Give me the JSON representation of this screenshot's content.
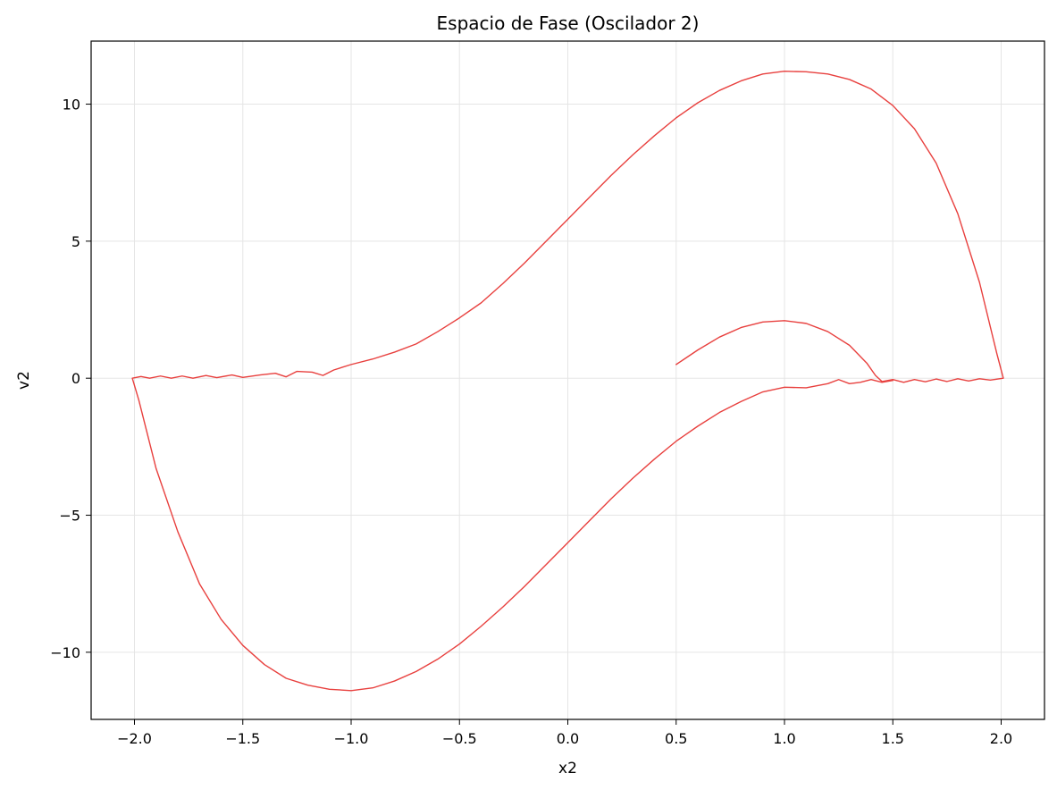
{
  "chart_data": {
    "type": "line",
    "title": "Espacio de Fase (Oscilador 2)",
    "xlabel": "x2",
    "ylabel": "v2",
    "xlim": [
      -2.2,
      2.2
    ],
    "ylim": [
      -12.45,
      12.3
    ],
    "x_ticks": [
      -2.0,
      -1.5,
      -1.0,
      -0.5,
      0.0,
      0.5,
      1.0,
      1.5,
      2.0
    ],
    "x_tick_labels": [
      "−2.0",
      "−1.5",
      "−1.0",
      "−0.5",
      "0.0",
      "0.5",
      "1.0",
      "1.5",
      "2.0"
    ],
    "y_ticks": [
      10,
      5,
      0,
      -5,
      -10
    ],
    "y_tick_labels": [
      "10",
      "5",
      "0",
      "−5",
      "−10"
    ],
    "grid": true,
    "line_color": "#e8403e",
    "series": [
      {
        "name": "",
        "points": [
          [
            0.5,
            0.5
          ],
          [
            0.6,
            1.03
          ],
          [
            0.7,
            1.5
          ],
          [
            0.8,
            1.85
          ],
          [
            0.9,
            2.05
          ],
          [
            1.0,
            2.1
          ],
          [
            1.1,
            2.0
          ],
          [
            1.2,
            1.7
          ],
          [
            1.3,
            1.2
          ],
          [
            1.38,
            0.55
          ],
          [
            1.42,
            0.1
          ],
          [
            1.45,
            -0.12
          ],
          [
            1.5,
            -0.05
          ],
          [
            1.55,
            -0.15
          ],
          [
            1.6,
            -0.05
          ],
          [
            1.65,
            -0.13
          ],
          [
            1.7,
            -0.03
          ],
          [
            1.75,
            -0.12
          ],
          [
            1.8,
            -0.02
          ],
          [
            1.85,
            -0.1
          ],
          [
            1.9,
            -0.02
          ],
          [
            1.95,
            -0.07
          ],
          [
            2.01,
            0.0
          ],
          [
            1.98,
            0.9
          ],
          [
            1.9,
            3.5
          ],
          [
            1.8,
            6.0
          ],
          [
            1.7,
            7.85
          ],
          [
            1.6,
            9.1
          ],
          [
            1.5,
            9.95
          ],
          [
            1.4,
            10.55
          ],
          [
            1.3,
            10.9
          ],
          [
            1.2,
            11.1
          ],
          [
            1.1,
            11.18
          ],
          [
            1.0,
            11.2
          ],
          [
            0.9,
            11.1
          ],
          [
            0.8,
            10.85
          ],
          [
            0.7,
            10.5
          ],
          [
            0.6,
            10.05
          ],
          [
            0.5,
            9.5
          ],
          [
            0.4,
            8.85
          ],
          [
            0.3,
            8.15
          ],
          [
            0.2,
            7.4
          ],
          [
            0.1,
            6.6
          ],
          [
            0.0,
            5.8
          ],
          [
            -0.1,
            5.0
          ],
          [
            -0.2,
            4.2
          ],
          [
            -0.3,
            3.45
          ],
          [
            -0.4,
            2.75
          ],
          [
            -0.5,
            2.2
          ],
          [
            -0.6,
            1.7
          ],
          [
            -0.7,
            1.25
          ],
          [
            -0.8,
            0.95
          ],
          [
            -0.9,
            0.7
          ],
          [
            -1.0,
            0.5
          ],
          [
            -1.08,
            0.3
          ],
          [
            -1.13,
            0.1
          ],
          [
            -1.18,
            0.22
          ],
          [
            -1.25,
            0.25
          ],
          [
            -1.3,
            0.05
          ],
          [
            -1.35,
            0.18
          ],
          [
            -1.42,
            0.12
          ],
          [
            -1.5,
            0.03
          ],
          [
            -1.55,
            0.12
          ],
          [
            -1.62,
            0.02
          ],
          [
            -1.67,
            0.1
          ],
          [
            -1.73,
            0.0
          ],
          [
            -1.78,
            0.08
          ],
          [
            -1.83,
            0.0
          ],
          [
            -1.88,
            0.08
          ],
          [
            -1.93,
            0.0
          ],
          [
            -1.97,
            0.06
          ],
          [
            -2.01,
            0.0
          ],
          [
            -1.98,
            -0.8
          ],
          [
            -1.9,
            -3.3
          ],
          [
            -1.8,
            -5.6
          ],
          [
            -1.7,
            -7.5
          ],
          [
            -1.6,
            -8.8
          ],
          [
            -1.5,
            -9.75
          ],
          [
            -1.4,
            -10.45
          ],
          [
            -1.3,
            -10.95
          ],
          [
            -1.2,
            -11.2
          ],
          [
            -1.1,
            -11.35
          ],
          [
            -1.0,
            -11.4
          ],
          [
            -0.9,
            -11.3
          ],
          [
            -0.8,
            -11.05
          ],
          [
            -0.7,
            -10.7
          ],
          [
            -0.6,
            -10.25
          ],
          [
            -0.5,
            -9.7
          ],
          [
            -0.4,
            -9.05
          ],
          [
            -0.3,
            -8.35
          ],
          [
            -0.2,
            -7.6
          ],
          [
            -0.1,
            -6.8
          ],
          [
            0.0,
            -6.0
          ],
          [
            0.1,
            -5.2
          ],
          [
            0.2,
            -4.4
          ],
          [
            0.3,
            -3.65
          ],
          [
            0.4,
            -2.95
          ],
          [
            0.5,
            -2.3
          ],
          [
            0.6,
            -1.75
          ],
          [
            0.7,
            -1.25
          ],
          [
            0.8,
            -0.85
          ],
          [
            0.9,
            -0.5
          ],
          [
            1.0,
            -0.33
          ],
          [
            1.1,
            -0.35
          ],
          [
            1.2,
            -0.2
          ],
          [
            1.25,
            -0.05
          ],
          [
            1.3,
            -0.2
          ],
          [
            1.35,
            -0.15
          ],
          [
            1.4,
            -0.05
          ],
          [
            1.45,
            -0.15
          ],
          [
            1.5,
            -0.08
          ]
        ]
      }
    ]
  }
}
